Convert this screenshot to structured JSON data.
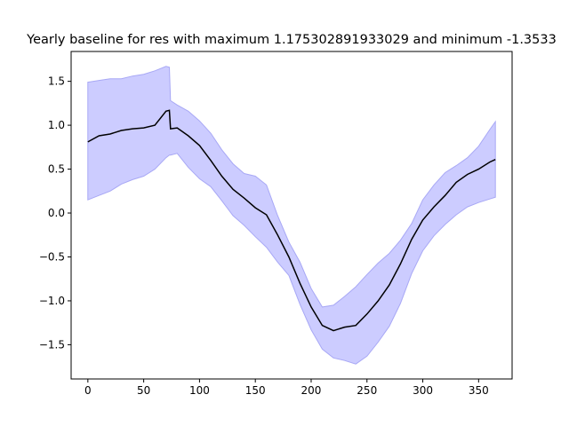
{
  "chart_data": {
    "type": "area",
    "title": "Yearly baseline for res with maximum 1.175302891933029 and minimum -1.3533",
    "xlabel": "",
    "ylabel": "",
    "xlim": [
      -15,
      380
    ],
    "ylim": [
      -1.89,
      1.84
    ],
    "xticks": [
      0,
      50,
      100,
      150,
      200,
      250,
      300,
      350
    ],
    "yticks": [
      -1.5,
      -1.0,
      -0.5,
      0.0,
      0.5,
      1.0,
      1.5
    ],
    "xtick_labels": [
      "0",
      "50",
      "100",
      "150",
      "200",
      "250",
      "300",
      "350"
    ],
    "ytick_labels": [
      "−1.5",
      "−1.0",
      "−0.5",
      "0.0",
      "0.5",
      "1.0",
      "1.5"
    ],
    "grid": false,
    "legend": "none",
    "colors": {
      "line": "#000000",
      "band_fill": "#ccccff",
      "band_edge": "#a8a8f5"
    },
    "series": [
      {
        "role": "mean",
        "x": [
          0,
          10,
          20,
          30,
          40,
          50,
          60,
          70,
          73,
          74,
          80,
          90,
          100,
          110,
          120,
          130,
          140,
          150,
          160,
          170,
          180,
          190,
          200,
          210,
          220,
          230,
          240,
          250,
          260,
          270,
          280,
          290,
          300,
          310,
          320,
          330,
          340,
          350,
          360,
          365
        ],
        "values": [
          0.81,
          0.88,
          0.9,
          0.94,
          0.96,
          0.97,
          1.0,
          1.16,
          1.17,
          0.96,
          0.97,
          0.88,
          0.77,
          0.6,
          0.42,
          0.27,
          0.17,
          0.06,
          -0.02,
          -0.25,
          -0.5,
          -0.8,
          -1.07,
          -1.28,
          -1.34,
          -1.3,
          -1.28,
          -1.15,
          -1.0,
          -0.82,
          -0.58,
          -0.3,
          -0.08,
          0.07,
          0.2,
          0.35,
          0.44,
          0.5,
          0.58,
          0.61
        ]
      },
      {
        "role": "upper",
        "x": [
          0,
          10,
          20,
          30,
          40,
          50,
          60,
          70,
          73,
          74,
          80,
          90,
          100,
          110,
          120,
          130,
          140,
          150,
          160,
          170,
          180,
          190,
          200,
          210,
          220,
          230,
          240,
          250,
          260,
          270,
          280,
          290,
          300,
          310,
          320,
          330,
          340,
          350,
          360,
          365
        ],
        "values": [
          1.49,
          1.51,
          1.53,
          1.53,
          1.56,
          1.58,
          1.62,
          1.67,
          1.66,
          1.28,
          1.23,
          1.16,
          1.05,
          0.91,
          0.72,
          0.56,
          0.45,
          0.42,
          0.32,
          -0.03,
          -0.33,
          -0.56,
          -0.86,
          -1.07,
          -1.05,
          -0.95,
          -0.84,
          -0.7,
          -0.57,
          -0.46,
          -0.31,
          -0.12,
          0.15,
          0.32,
          0.46,
          0.54,
          0.63,
          0.76,
          0.95,
          1.04
        ]
      },
      {
        "role": "lower",
        "x": [
          0,
          10,
          20,
          30,
          40,
          50,
          60,
          70,
          73,
          74,
          80,
          90,
          100,
          110,
          120,
          130,
          140,
          150,
          160,
          170,
          180,
          190,
          200,
          210,
          220,
          230,
          240,
          250,
          260,
          270,
          280,
          290,
          300,
          310,
          320,
          330,
          340,
          350,
          360,
          365
        ],
        "values": [
          0.15,
          0.2,
          0.25,
          0.33,
          0.38,
          0.42,
          0.5,
          0.63,
          0.66,
          0.66,
          0.68,
          0.52,
          0.39,
          0.3,
          0.14,
          -0.03,
          -0.14,
          -0.27,
          -0.39,
          -0.56,
          -0.71,
          -1.04,
          -1.33,
          -1.55,
          -1.65,
          -1.68,
          -1.72,
          -1.63,
          -1.47,
          -1.29,
          -1.03,
          -0.69,
          -0.43,
          -0.26,
          -0.13,
          -0.02,
          0.07,
          0.12,
          0.16,
          0.18
        ]
      }
    ]
  }
}
